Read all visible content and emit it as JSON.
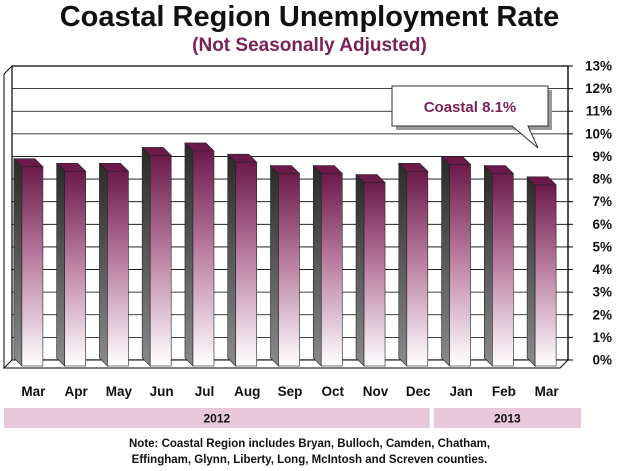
{
  "title": "Coastal Region Unemployment Rate",
  "subtitle": "(Not Seasonally Adjusted)",
  "note_lines": [
    "Note: Coastal Region includes Bryan, Bulloch, Camden, Chatham,",
    "Effingham, Glynn, Liberty, Long, McIntosh and Screven counties."
  ],
  "colors": {
    "subtitle": "#7a2257",
    "bar_top": "#6b1a4a",
    "bar_mid": "#b87a9e",
    "bar_bottom": "#ffffff",
    "bar_side": "#444444",
    "year_band": "#e8c8d8"
  },
  "chart_data": {
    "type": "bar",
    "categories": [
      "Mar",
      "Apr",
      "May",
      "Jun",
      "Jul",
      "Aug",
      "Sep",
      "Oct",
      "Nov",
      "Dec",
      "Jan",
      "Feb",
      "Mar"
    ],
    "series": [
      {
        "values": [
          8.9,
          8.7,
          8.7,
          9.4,
          9.6,
          9.1,
          8.6,
          8.6,
          8.2,
          8.7,
          9.0,
          8.6,
          8.1
        ]
      }
    ],
    "yticks": [
      "0%",
      "1%",
      "2%",
      "3%",
      "4%",
      "5%",
      "6%",
      "7%",
      "8%",
      "9%",
      "10%",
      "11%",
      "12%",
      "13%"
    ],
    "ylim": [
      0,
      13
    ],
    "grid": true,
    "year_groups": [
      {
        "label": "2012",
        "start": 0,
        "end": 9
      },
      {
        "label": "2013",
        "start": 10,
        "end": 12
      }
    ],
    "annotation": "Coastal 8.1%"
  }
}
